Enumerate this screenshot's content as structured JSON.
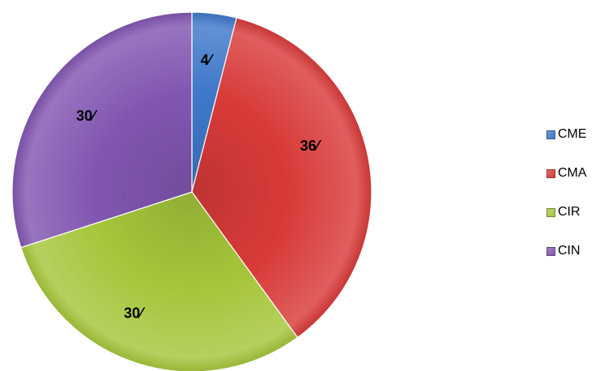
{
  "chart_data": {
    "type": "pie",
    "slices": [
      {
        "name": "CME",
        "value": 4,
        "label": "4⁄",
        "color": "#3f78c9"
      },
      {
        "name": "CMA",
        "value": 36,
        "label": "36⁄",
        "color": "#d83b39"
      },
      {
        "name": "CIR",
        "value": 30,
        "label": "30⁄",
        "color": "#a5c63b"
      },
      {
        "name": "CIN",
        "value": 30,
        "label": "30⁄",
        "color": "#8156b1"
      }
    ],
    "start_angle_deg": 0,
    "direction": "clockwise",
    "legend": {
      "placement": "right",
      "entries": [
        "CME",
        "CMA",
        "CIR",
        "CIN"
      ]
    },
    "title": "",
    "xlabel": "",
    "ylabel": ""
  }
}
